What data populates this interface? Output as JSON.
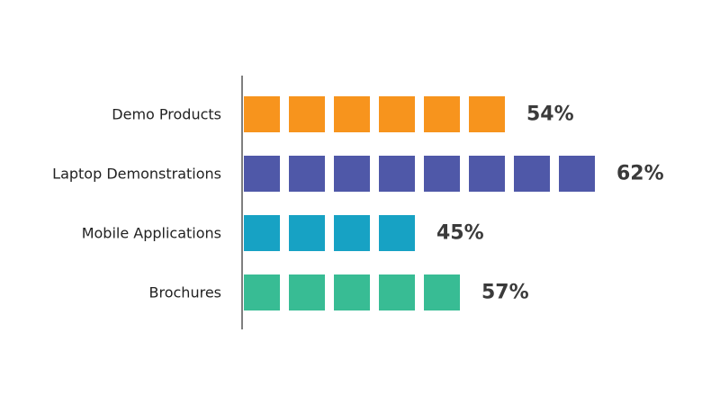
{
  "chart_data": {
    "type": "bar",
    "orientation": "horizontal",
    "style": "pictogram-squares",
    "categories": [
      "Demo Products",
      "Laptop Demonstrations",
      "Mobile Applications",
      "Brochures"
    ],
    "values": [
      54,
      62,
      45,
      57
    ],
    "value_labels": [
      "54%",
      "62%",
      "45%",
      "57%"
    ],
    "square_counts": [
      6,
      8,
      4,
      5
    ],
    "colors": [
      "#f7941d",
      "#4f58a8",
      "#17a2c4",
      "#38bc94"
    ],
    "title": "",
    "xlabel": "",
    "ylabel": "",
    "grid": false,
    "legend": "none"
  }
}
